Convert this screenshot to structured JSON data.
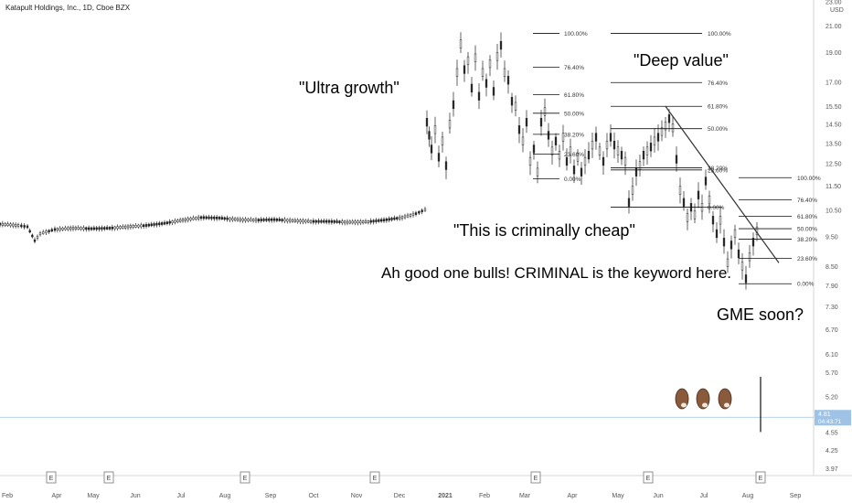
{
  "chart_data": {
    "type": "candlestick",
    "title": "Katapult Holdings, Inc., 1D, Cboe BZX",
    "ylabel": "USD",
    "scale": "log",
    "y_ticks": [
      "23.00",
      "21.00",
      "19.00",
      "17.00",
      "15.50",
      "14.50",
      "13.50",
      "12.50",
      "11.50",
      "10.50",
      "9.50",
      "8.50",
      "7.90",
      "7.30",
      "6.70",
      "6.10",
      "5.70",
      "5.20",
      "4.85",
      "4.55",
      "4.25",
      "3.97"
    ],
    "x_ticks": [
      "Feb",
      "Apr",
      "May",
      "Jun",
      "Jul",
      "Aug",
      "Sep",
      "Oct",
      "Nov",
      "Dec",
      "2021",
      "Feb",
      "Mar",
      "Apr",
      "May",
      "Jun",
      "Jul",
      "Aug",
      "Sep"
    ],
    "price_series": [
      [
        0,
        9.95
      ],
      [
        20,
        9.9
      ],
      [
        30,
        9.85
      ],
      [
        38,
        9.35
      ],
      [
        44,
        9.6
      ],
      [
        60,
        9.75
      ],
      [
        80,
        9.8
      ],
      [
        100,
        9.78
      ],
      [
        120,
        9.8
      ],
      [
        140,
        9.85
      ],
      [
        160,
        9.9
      ],
      [
        180,
        9.98
      ],
      [
        200,
        10.1
      ],
      [
        220,
        10.2
      ],
      [
        240,
        10.18
      ],
      [
        260,
        10.12
      ],
      [
        280,
        10.1
      ],
      [
        300,
        10.12
      ],
      [
        320,
        10.08
      ],
      [
        340,
        10.05
      ],
      [
        360,
        10.05
      ],
      [
        380,
        10.02
      ],
      [
        400,
        10.03
      ],
      [
        420,
        10.1
      ],
      [
        440,
        10.2
      ],
      [
        455,
        10.35
      ],
      [
        465,
        10.5
      ],
      [
        467,
        14.6
      ],
      [
        472,
        13.2
      ],
      [
        476,
        14.2
      ],
      [
        480,
        12.8
      ],
      [
        484,
        13.6
      ],
      [
        488,
        12.4
      ],
      [
        492,
        14.5
      ],
      [
        496,
        15.6
      ],
      [
        500,
        17.6
      ],
      [
        504,
        19.6
      ],
      [
        508,
        17.8
      ],
      [
        512,
        18.4
      ],
      [
        516,
        16.6
      ],
      [
        520,
        18.6
      ],
      [
        524,
        16.1
      ],
      [
        528,
        17.6
      ],
      [
        532,
        16.9
      ],
      [
        536,
        18.2
      ],
      [
        540,
        16.4
      ],
      [
        544,
        18.7
      ],
      [
        548,
        19.5
      ],
      [
        552,
        17.6
      ],
      [
        556,
        17.1
      ],
      [
        560,
        15.8
      ],
      [
        564,
        15.5
      ],
      [
        568,
        14.2
      ],
      [
        572,
        13.6
      ],
      [
        576,
        14.6
      ],
      [
        580,
        12.6
      ],
      [
        584,
        13.2
      ],
      [
        588,
        12.1
      ],
      [
        592,
        14.6
      ],
      [
        596,
        15.2
      ],
      [
        600,
        13.9
      ],
      [
        604,
        13.1
      ],
      [
        608,
        13.6
      ],
      [
        612,
        12.9
      ],
      [
        616,
        13.8
      ],
      [
        620,
        12.6
      ],
      [
        624,
        13.1
      ],
      [
        628,
        12.2
      ],
      [
        632,
        12.8
      ],
      [
        636,
        12.1
      ],
      [
        640,
        12.6
      ],
      [
        644,
        12.9
      ],
      [
        648,
        13.4
      ],
      [
        652,
        13.8
      ],
      [
        656,
        13.1
      ],
      [
        660,
        12.6
      ],
      [
        664,
        13.4
      ],
      [
        668,
        13.8
      ],
      [
        672,
        13.4
      ],
      [
        676,
        13.1
      ],
      [
        680,
        12.9
      ],
      [
        684,
        12.6
      ],
      [
        688,
        10.8
      ],
      [
        692,
        11.3
      ],
      [
        696,
        12.1
      ],
      [
        700,
        12.4
      ],
      [
        704,
        12.9
      ],
      [
        708,
        13.1
      ],
      [
        712,
        13.3
      ],
      [
        716,
        13.6
      ],
      [
        720,
        13.8
      ],
      [
        724,
        14.1
      ],
      [
        728,
        14.4
      ],
      [
        732,
        14.8
      ],
      [
        736,
        14.3
      ],
      [
        740,
        12.7
      ],
      [
        744,
        11.3
      ],
      [
        748,
        10.8
      ],
      [
        752,
        10.2
      ],
      [
        756,
        10.6
      ],
      [
        760,
        10.3
      ],
      [
        764,
        11.1
      ],
      [
        768,
        10.6
      ],
      [
        772,
        11.7
      ],
      [
        776,
        10.9
      ],
      [
        780,
        10.1
      ],
      [
        784,
        9.6
      ],
      [
        788,
        10.1
      ],
      [
        792,
        9.3
      ],
      [
        796,
        8.6
      ],
      [
        800,
        9.2
      ],
      [
        804,
        9.6
      ],
      [
        808,
        8.9
      ],
      [
        812,
        8.5
      ],
      [
        816,
        8.1
      ],
      [
        820,
        8.8
      ],
      [
        824,
        9.3
      ],
      [
        828,
        9.7
      ],
      [
        830,
        9.8
      ]
    ],
    "fib_sets": [
      {
        "levels": [
          [
            "100.00%",
            20.4
          ],
          [
            "76.40%",
            17.95
          ],
          [
            "61.80%",
            16.2
          ],
          [
            "50.00%",
            15.1
          ],
          [
            "38.20%",
            13.95
          ],
          [
            "23.60%",
            12.95
          ],
          [
            "0.00%",
            11.8
          ]
        ]
      },
      {
        "levels": [
          [
            "100.00%",
            20.4
          ],
          [
            "76.40%",
            16.95
          ],
          [
            "61.80%",
            15.5
          ],
          [
            "50.00%",
            14.25
          ],
          [
            "38.20%",
            12.3
          ],
          [
            "23.60%",
            12.2
          ],
          [
            "0.00%",
            10.6
          ]
        ]
      },
      {
        "levels": [
          [
            "100.00%",
            11.85
          ],
          [
            "76.40%",
            10.9
          ],
          [
            "61.80%",
            10.25
          ],
          [
            "50.00%",
            9.78
          ],
          [
            "38.20%",
            9.4
          ],
          [
            "23.60%",
            8.75
          ],
          [
            "0.00%",
            7.95
          ]
        ]
      }
    ],
    "fib_labels": [
      [
        "100.00%",
        "76.40%",
        "61.80%",
        "50.00%",
        "38.20%",
        "23.60%",
        "0.00%"
      ],
      [
        "100.00%",
        "76.40%",
        "61.80%",
        "50.00%",
        "38.20%",
        "23.60%",
        "0.00%"
      ],
      [
        "100.00%",
        "76.40%",
        "61.80%",
        "50.00%",
        "38.20%",
        "23.60%",
        "0.00%"
      ]
    ],
    "trendline": {
      "from": [
        728,
        15.5
      ],
      "to": [
        852,
        8.6
      ]
    },
    "spike_line": {
      "x": 832,
      "from": 5.6,
      "to": 4.55
    },
    "last_price": {
      "value": "4.81",
      "timer": "04:43:71",
      "level": 4.81
    },
    "earnings_markers": [
      "E",
      "E",
      "E",
      "E",
      "E",
      "E",
      "E"
    ],
    "earnings_x": [
      56,
      119,
      268,
      410,
      586,
      709,
      832
    ],
    "annotations": [
      {
        "text": "\"Ultra growth\""
      },
      {
        "text": "\"Deep value\""
      },
      {
        "text": "\"This is criminally cheap\""
      },
      {
        "text": "Ah good one bulls! CRIMINAL is the keyword here."
      },
      {
        "text": "GME soon?"
      }
    ]
  }
}
